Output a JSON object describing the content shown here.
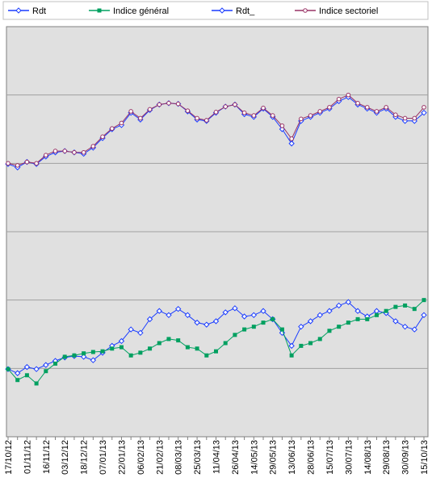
{
  "chart_data": {
    "type": "line",
    "categories": [
      "17/10/12",
      null,
      "01/11/12",
      null,
      "16/11/12",
      null,
      "03/12/12",
      null,
      "18/12/12",
      null,
      "07/01/13",
      null,
      "22/01/13",
      null,
      "06/02/13",
      null,
      "21/02/13",
      null,
      "08/03/13",
      null,
      "25/03/13",
      null,
      "11/04/13",
      null,
      "26/04/13",
      null,
      "14/05/13",
      null,
      "29/05/13",
      null,
      "13/06/13",
      null,
      "28/06/13",
      null,
      "15/07/13",
      null,
      "30/07/13",
      null,
      "14/08/13",
      null,
      "29/08/13",
      null,
      "30/09/13",
      null,
      "15/10/13"
    ],
    "series": [
      {
        "name": "Rdt",
        "color": "#1a3cff",
        "marker": "diamond",
        "values": [
          0.99,
          0.93,
          1.02,
          0.99,
          1.05,
          1.11,
          1.16,
          1.18,
          1.17,
          1.12,
          1.23,
          1.33,
          1.4,
          1.57,
          1.52,
          1.72,
          1.84,
          1.78,
          1.87,
          1.78,
          1.67,
          1.64,
          1.69,
          1.82,
          1.88,
          1.76,
          1.78,
          1.84,
          1.72,
          1.52,
          1.33,
          1.61,
          1.69,
          1.78,
          1.84,
          1.92,
          1.97,
          1.84,
          1.76,
          1.84,
          1.81,
          1.69,
          1.61,
          1.57,
          1.78
        ]
      },
      {
        "name": "Indice général",
        "color": "#00a060",
        "marker": "square",
        "values": [
          0.99,
          0.83,
          0.9,
          0.78,
          0.96,
          1.07,
          1.17,
          1.19,
          1.22,
          1.24,
          1.25,
          1.29,
          1.31,
          1.19,
          1.23,
          1.29,
          1.37,
          1.43,
          1.41,
          1.31,
          1.29,
          1.19,
          1.25,
          1.37,
          1.49,
          1.57,
          1.61,
          1.67,
          1.72,
          1.57,
          1.19,
          1.33,
          1.37,
          1.43,
          1.55,
          1.61,
          1.67,
          1.72,
          1.72,
          1.78,
          1.84,
          1.9,
          1.92,
          1.87,
          2.0
        ]
      },
      {
        "name": "Rdt_",
        "color": "#1a3cff",
        "marker": "diamond",
        "values": [
          3.99,
          3.94,
          4.02,
          3.99,
          4.1,
          4.16,
          4.18,
          4.16,
          4.14,
          4.23,
          4.37,
          4.5,
          4.56,
          4.74,
          4.64,
          4.78,
          4.86,
          4.88,
          4.87,
          4.76,
          4.64,
          4.62,
          4.74,
          4.83,
          4.86,
          4.72,
          4.68,
          4.8,
          4.68,
          4.5,
          4.29,
          4.62,
          4.68,
          4.74,
          4.8,
          4.91,
          4.97,
          4.86,
          4.8,
          4.74,
          4.8,
          4.68,
          4.62,
          4.62,
          4.74
        ]
      },
      {
        "name": "Indice sectoriel",
        "color": "#993366",
        "marker": "circle",
        "values": [
          4.0,
          3.97,
          4.02,
          4.0,
          4.12,
          4.18,
          4.18,
          4.16,
          4.16,
          4.25,
          4.39,
          4.51,
          4.59,
          4.76,
          4.66,
          4.79,
          4.86,
          4.88,
          4.87,
          4.77,
          4.66,
          4.63,
          4.75,
          4.83,
          4.86,
          4.74,
          4.7,
          4.81,
          4.7,
          4.55,
          4.36,
          4.65,
          4.7,
          4.76,
          4.82,
          4.94,
          5.0,
          4.88,
          4.82,
          4.76,
          4.82,
          4.71,
          4.66,
          4.66,
          4.82
        ]
      }
    ],
    "ylim": [
      0,
      6
    ],
    "yticks": [
      1,
      2,
      3,
      4,
      5
    ],
    "grid": true
  }
}
